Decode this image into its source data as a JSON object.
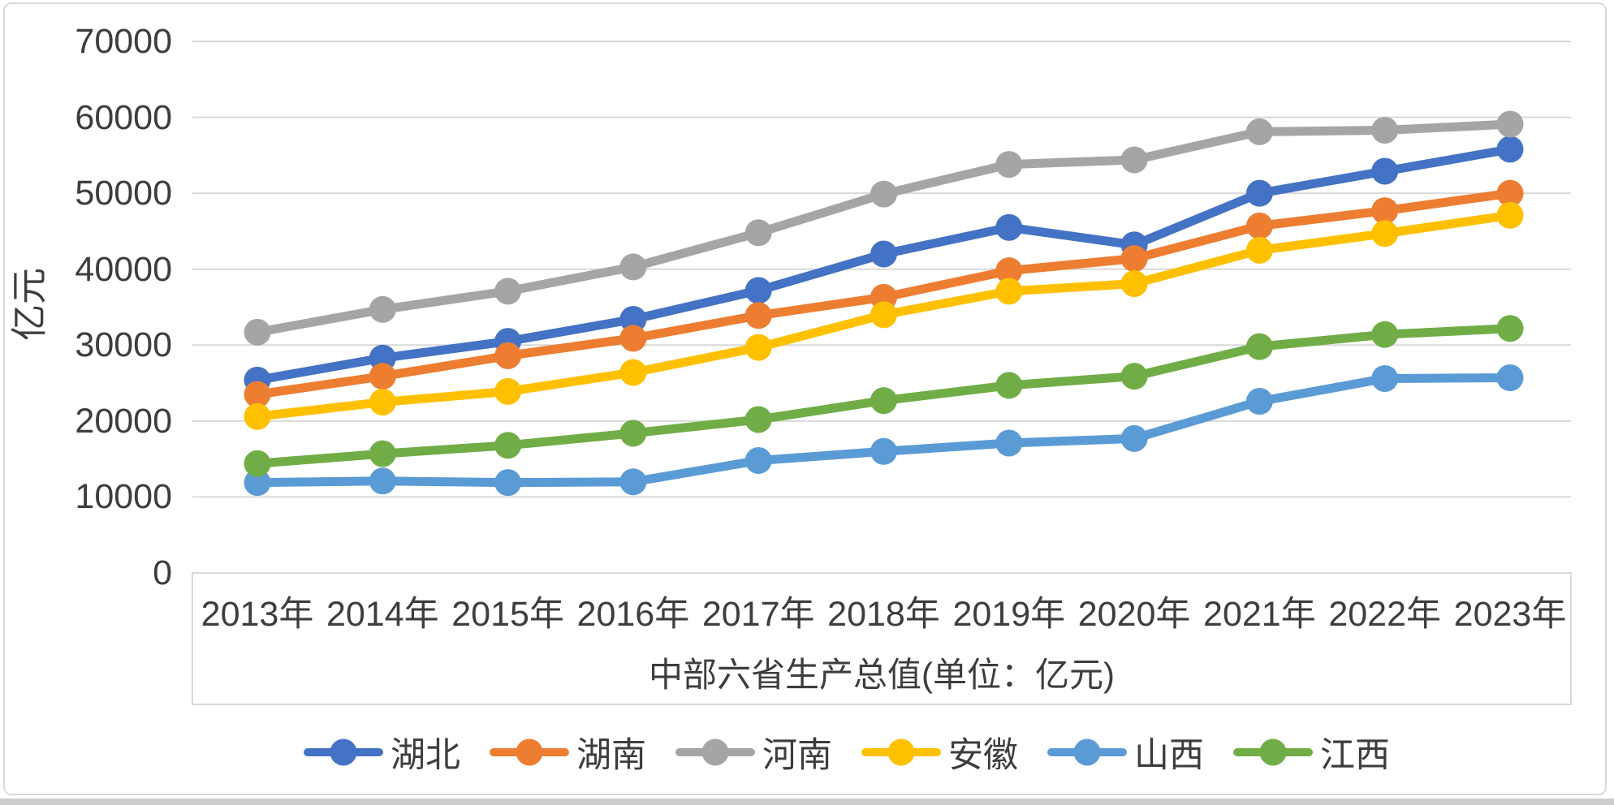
{
  "frame": {
    "background": "#ffffff",
    "border_color": "#d9d9d9",
    "bottom_strip_color": "#cdcdcd"
  },
  "chart_data": {
    "type": "line",
    "title": "中部六省生产总值(单位：亿元)",
    "ylabel": "亿元",
    "categories": [
      "2013年",
      "2014年",
      "2015年",
      "2016年",
      "2017年",
      "2018年",
      "2019年",
      "2020年",
      "2021年",
      "2022年",
      "2023年"
    ],
    "series": [
      {
        "id": "hubei",
        "name": "湖北",
        "color": "#4472C4",
        "values": [
          25400,
          28300,
          30500,
          33400,
          37200,
          42000,
          45500,
          43200,
          50000,
          52900,
          55800
        ]
      },
      {
        "id": "hunan",
        "name": "湖南",
        "color": "#ED7D31",
        "values": [
          23500,
          25900,
          28600,
          30900,
          33900,
          36300,
          39800,
          41400,
          45700,
          47700,
          50000
        ]
      },
      {
        "id": "henan",
        "name": "河南",
        "color": "#A5A5A5",
        "values": [
          31700,
          34700,
          37100,
          40300,
          44800,
          49900,
          53800,
          54400,
          58100,
          58300,
          59100
        ]
      },
      {
        "id": "anhui",
        "name": "安徽",
        "color": "#FFC000",
        "values": [
          20600,
          22500,
          23900,
          26400,
          29700,
          34000,
          37100,
          38100,
          42500,
          44700,
          47100
        ]
      },
      {
        "id": "shanxi",
        "name": "山西",
        "color": "#5B9BD5",
        "values": [
          11900,
          12100,
          11900,
          12000,
          14800,
          16000,
          17100,
          17700,
          22600,
          25600,
          25700
        ]
      },
      {
        "id": "jiangxi",
        "name": "江西",
        "color": "#70AD47",
        "values": [
          14400,
          15700,
          16800,
          18400,
          20200,
          22700,
          24700,
          25900,
          29800,
          31400,
          32200
        ]
      }
    ],
    "ylim": [
      0,
      70000
    ],
    "ytick_step": 10000,
    "yticks": [
      0,
      10000,
      20000,
      30000,
      40000,
      50000,
      60000,
      70000
    ],
    "grid": true,
    "gridline_color": "#d9d9d9",
    "text_color": "#3d3d3d",
    "legend_position": "bottom"
  }
}
